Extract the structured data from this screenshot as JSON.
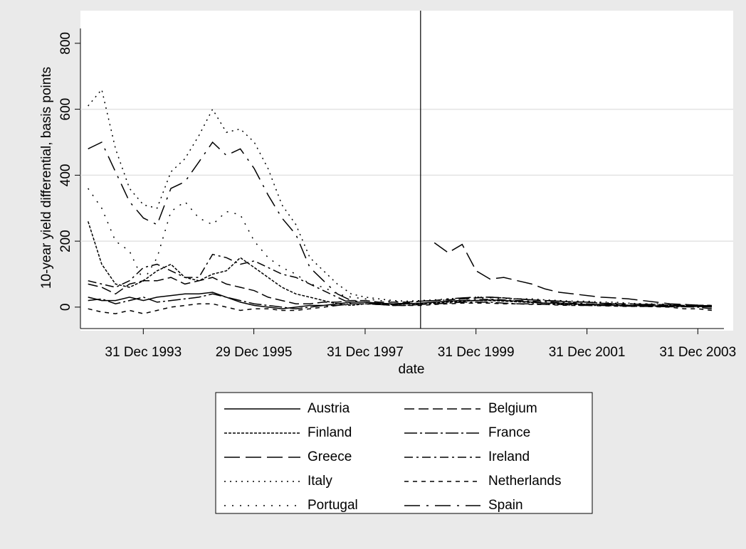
{
  "chart_data": {
    "type": "line",
    "ylabel": "10-year yield differential, basis points",
    "xlabel": "date",
    "x": [
      "1993-01-01",
      "1993-04-01",
      "1993-07-01",
      "1993-10-01",
      "1994-01-01",
      "1994-04-01",
      "1994-07-01",
      "1994-10-01",
      "1995-01-01",
      "1995-04-01",
      "1995-07-01",
      "1995-10-01",
      "1996-01-01",
      "1996-04-01",
      "1996-07-01",
      "1996-10-01",
      "1997-01-01",
      "1997-04-01",
      "1997-07-01",
      "1997-10-01",
      "1998-01-01",
      "1998-04-01",
      "1998-07-01",
      "1998-10-01",
      "1999-01-01",
      "1999-04-01",
      "1999-07-01",
      "1999-10-01",
      "2000-01-01",
      "2000-04-01",
      "2000-07-01",
      "2000-10-01",
      "2001-01-01",
      "2001-04-01",
      "2001-07-01",
      "2001-10-01",
      "2002-01-01",
      "2002-04-01",
      "2002-07-01",
      "2002-10-01",
      "2003-01-01",
      "2003-04-01",
      "2003-07-01",
      "2003-10-01",
      "2004-01-01",
      "2004-04-01"
    ],
    "series": [
      {
        "name": "Austria",
        "color": "#000000",
        "dash": "none",
        "values": [
          30,
          20,
          20,
          30,
          20,
          30,
          35,
          40,
          40,
          45,
          30,
          15,
          5,
          0,
          -5,
          0,
          5,
          5,
          10,
          15,
          15,
          12,
          10,
          10,
          12,
          15,
          18,
          20,
          20,
          22,
          20,
          18,
          15,
          12,
          12,
          10,
          8,
          8,
          6,
          5,
          5,
          4,
          3,
          2,
          2,
          0
        ]
      },
      {
        "name": "Belgium",
        "color": "#000000",
        "dash": "14 6",
        "values": [
          70,
          60,
          40,
          70,
          80,
          80,
          90,
          70,
          80,
          90,
          70,
          60,
          50,
          30,
          20,
          10,
          10,
          15,
          15,
          20,
          20,
          15,
          15,
          15,
          18,
          20,
          22,
          25,
          28,
          30,
          28,
          25,
          22,
          20,
          18,
          15,
          15,
          12,
          10,
          10,
          8,
          8,
          6,
          5,
          5,
          3
        ]
      },
      {
        "name": "Finland",
        "color": "#000000",
        "dash": "4 2",
        "values": [
          260,
          130,
          70,
          60,
          80,
          110,
          130,
          90,
          80,
          100,
          110,
          150,
          120,
          90,
          60,
          40,
          30,
          20,
          10,
          5,
          10,
          10,
          8,
          5,
          10,
          12,
          15,
          18,
          20,
          20,
          18,
          16,
          14,
          12,
          10,
          8,
          8,
          6,
          5,
          5,
          4,
          3,
          2,
          2,
          2,
          1
        ]
      },
      {
        "name": "France",
        "color": "#000000",
        "dash": "18 4 3 4",
        "values": [
          20,
          25,
          10,
          20,
          30,
          15,
          20,
          25,
          30,
          40,
          30,
          20,
          10,
          5,
          0,
          -5,
          0,
          5,
          5,
          10,
          10,
          8,
          5,
          5,
          8,
          10,
          12,
          15,
          15,
          15,
          12,
          10,
          10,
          8,
          8,
          6,
          5,
          5,
          4,
          3,
          2,
          2,
          1,
          1,
          0,
          -5
        ]
      },
      {
        "name": "Greece",
        "color": "#000000",
        "dash": "22 8",
        "values": [
          null,
          null,
          null,
          null,
          null,
          null,
          null,
          null,
          null,
          null,
          null,
          null,
          null,
          null,
          null,
          null,
          null,
          null,
          null,
          null,
          null,
          null,
          null,
          null,
          null,
          195,
          165,
          190,
          110,
          85,
          90,
          80,
          70,
          55,
          45,
          40,
          35,
          30,
          28,
          25,
          20,
          15,
          10,
          8,
          6,
          5
        ]
      },
      {
        "name": "Ireland",
        "color": "#000000",
        "dash": "12 5 3 5",
        "values": [
          80,
          70,
          60,
          80,
          120,
          130,
          110,
          90,
          90,
          160,
          150,
          130,
          140,
          120,
          100,
          90,
          70,
          50,
          30,
          10,
          10,
          8,
          8,
          10,
          12,
          15,
          18,
          20,
          22,
          24,
          22,
          20,
          18,
          16,
          14,
          12,
          10,
          8,
          8,
          6,
          6,
          5,
          4,
          3,
          3,
          2
        ]
      },
      {
        "name": "Italy",
        "color": "#000000",
        "dash": "2 6",
        "values": [
          610,
          660,
          480,
          360,
          310,
          300,
          410,
          450,
          520,
          600,
          530,
          540,
          500,
          420,
          310,
          250,
          150,
          110,
          70,
          40,
          30,
          25,
          20,
          18,
          20,
          22,
          25,
          28,
          30,
          30,
          28,
          25,
          25,
          22,
          20,
          18,
          18,
          15,
          15,
          12,
          10,
          10,
          8,
          8,
          6,
          5
        ]
      },
      {
        "name": "Netherlands",
        "color": "#000000",
        "dash": "6 6",
        "values": [
          -5,
          -15,
          -20,
          -10,
          -20,
          -10,
          0,
          5,
          10,
          10,
          0,
          -10,
          -5,
          -5,
          -10,
          -10,
          -5,
          0,
          5,
          10,
          10,
          8,
          5,
          5,
          5,
          8,
          10,
          12,
          12,
          12,
          10,
          10,
          8,
          8,
          6,
          5,
          5,
          4,
          3,
          2,
          2,
          1,
          0,
          -5,
          -5,
          -10
        ]
      },
      {
        "name": "Portugal",
        "color": "#000000",
        "dash": "2 9",
        "values": [
          360,
          300,
          200,
          170,
          80,
          150,
          290,
          320,
          270,
          250,
          290,
          280,
          200,
          150,
          120,
          100,
          70,
          60,
          40,
          30,
          25,
          20,
          18,
          15,
          18,
          20,
          22,
          24,
          26,
          28,
          26,
          24,
          22,
          20,
          18,
          16,
          15,
          14,
          12,
          10,
          10,
          8,
          8,
          6,
          6,
          5
        ]
      },
      {
        "name": "Spain",
        "color": "#000000",
        "dash": "22 9 3 9",
        "values": [
          480,
          500,
          410,
          320,
          270,
          250,
          360,
          380,
          440,
          500,
          460,
          480,
          420,
          340,
          270,
          220,
          120,
          80,
          40,
          20,
          15,
          10,
          10,
          12,
          18,
          20,
          25,
          28,
          30,
          30,
          28,
          25,
          22,
          20,
          18,
          16,
          15,
          12,
          10,
          10,
          8,
          8,
          6,
          5,
          5,
          4
        ]
      }
    ],
    "xlim": [
      "1992-11-12",
      "2004-06-20"
    ],
    "xticks": [
      {
        "value": "1993-12-31",
        "label": "31 Dec 1993"
      },
      {
        "value": "1995-12-29",
        "label": "29 Dec 1995"
      },
      {
        "value": "1997-12-31",
        "label": "31 Dec 1997"
      },
      {
        "value": "1999-12-31",
        "label": "31 Dec 1999"
      },
      {
        "value": "2001-12-31",
        "label": "31 Dec 2001"
      },
      {
        "value": "2003-12-31",
        "label": "31 Dec 2003"
      }
    ],
    "xline": "1998-12-31",
    "ylim": [
      -65,
      845
    ],
    "yticks": [
      0,
      200,
      400,
      600,
      800
    ],
    "grid": true
  }
}
